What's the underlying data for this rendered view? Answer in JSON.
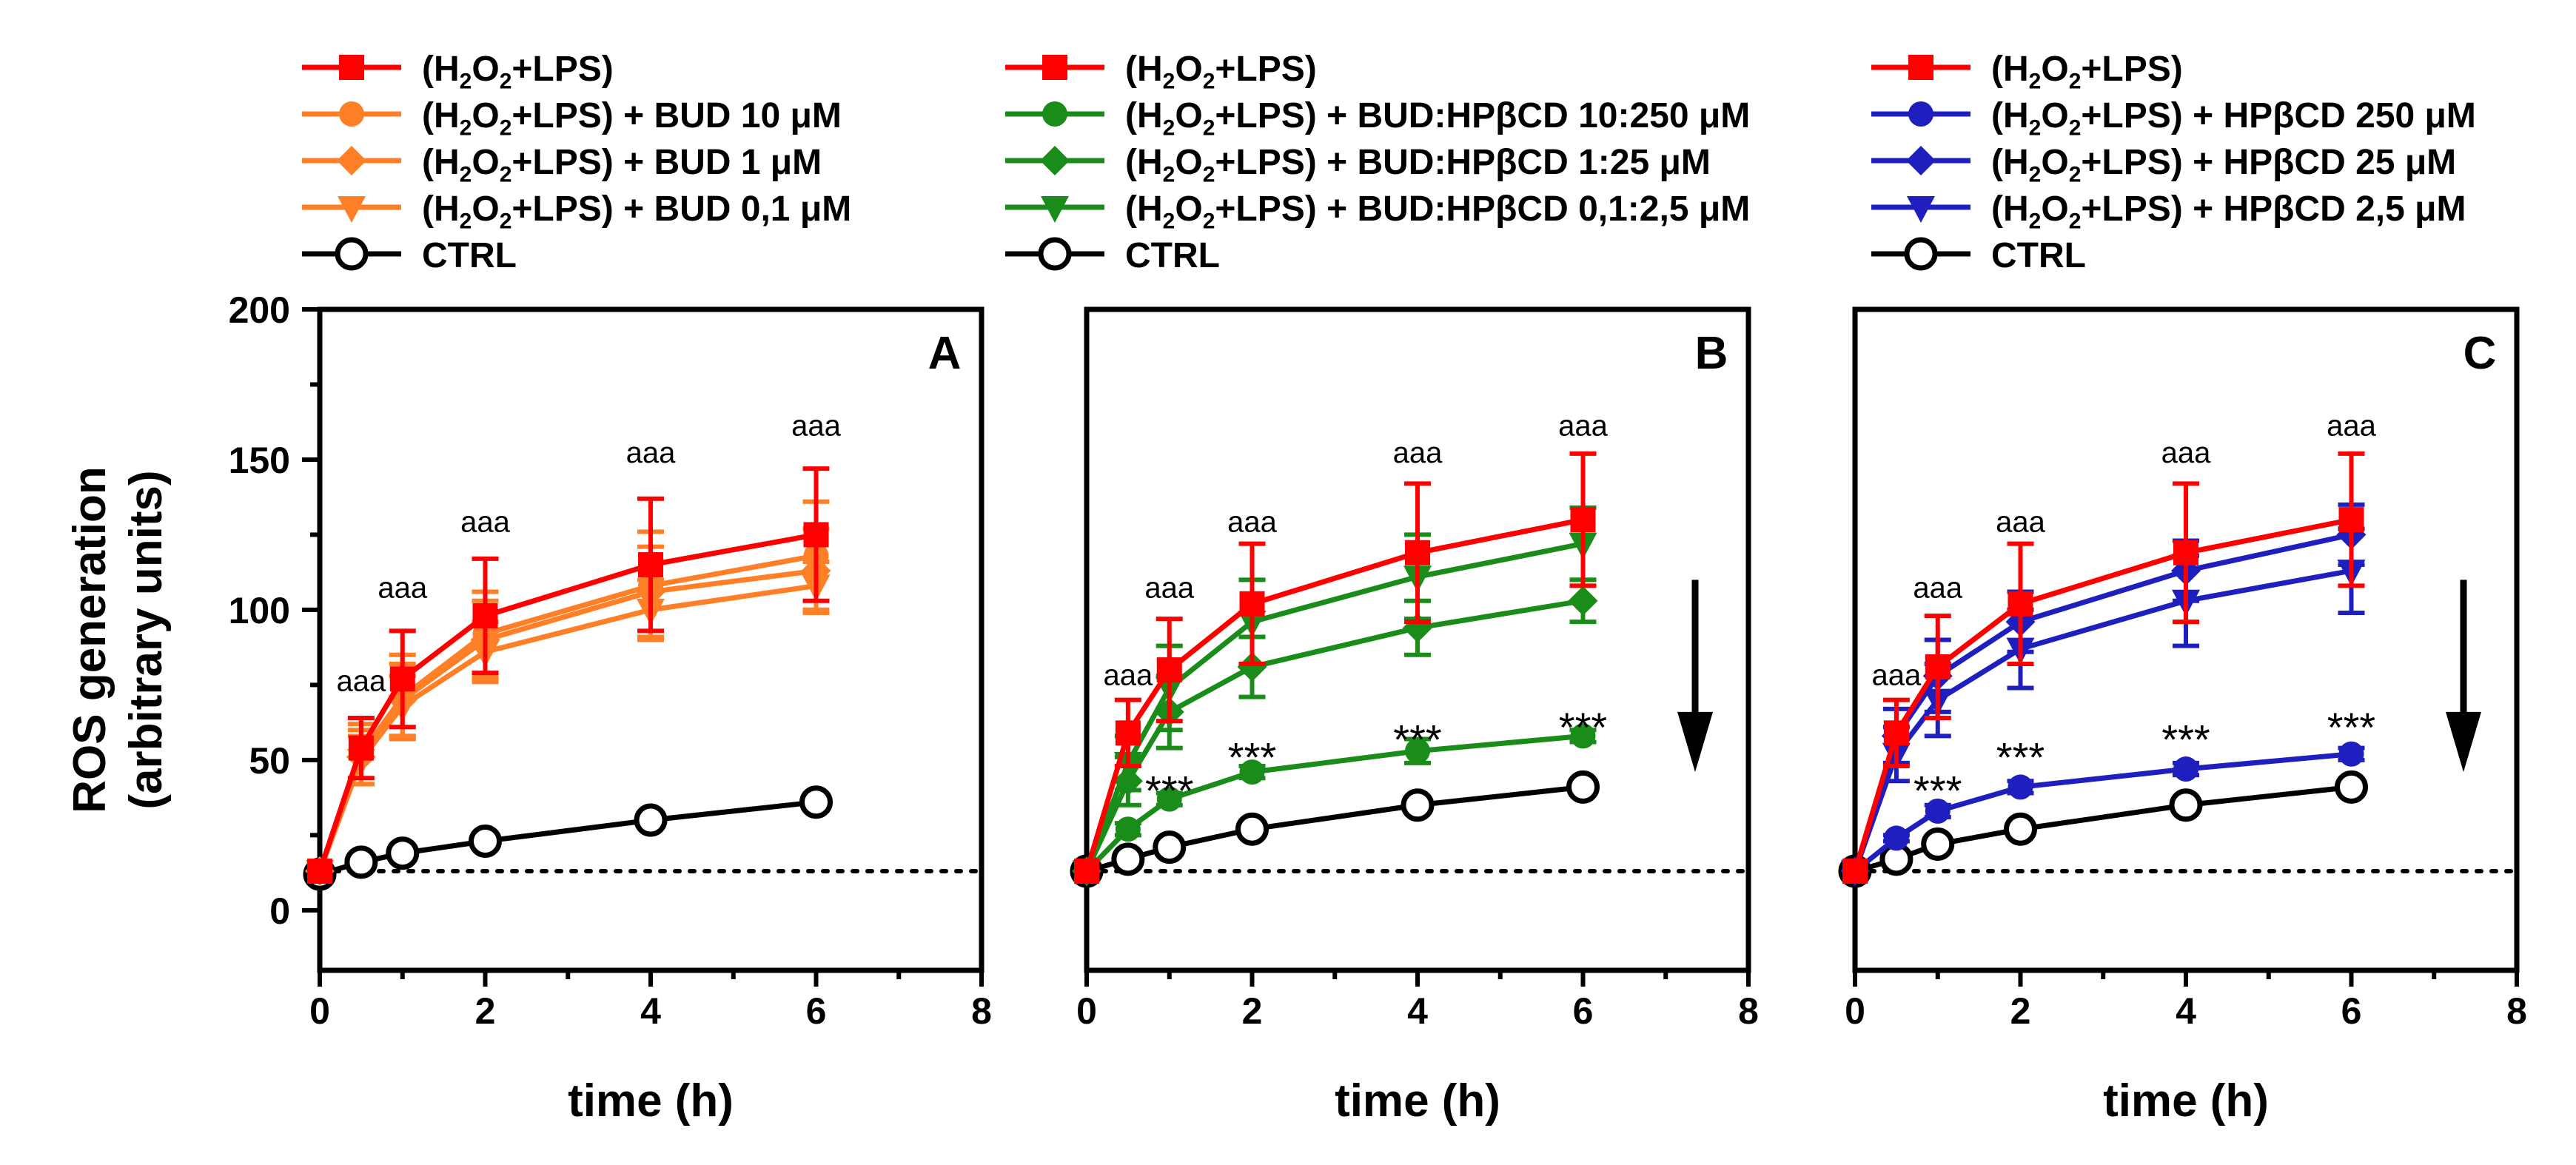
{
  "chart_data": [
    {
      "panel_label": "A",
      "type": "line",
      "xlabel": "time (h)",
      "ylabel": "ROS generation\n(arbitrary units)",
      "xlim": [
        0,
        8
      ],
      "ylim": [
        -20,
        200
      ],
      "x_ticks": [
        "0",
        "2",
        "4",
        "6",
        "8"
      ],
      "y_ticks": [
        "0",
        "50",
        "100",
        "150",
        "200"
      ],
      "baseline_dotted": 13,
      "x": [
        0,
        0.5,
        1,
        2,
        4,
        6
      ],
      "series": [
        {
          "name": "(H₂O₂+LPS)",
          "color": "#ff0000",
          "marker": "square",
          "values": [
            13,
            54,
            77,
            98,
            115,
            125
          ],
          "err": [
            0,
            10,
            16,
            19,
            22,
            22
          ]
        },
        {
          "name": "(H₂O₂+LPS) + BUD 10 μM",
          "color": "#ff7f27",
          "marker": "circle",
          "values": [
            13,
            52,
            71,
            92,
            108,
            118
          ],
          "err": [
            0,
            10,
            14,
            14,
            18,
            18
          ]
        },
        {
          "name": "(H₂O₂+LPS) + BUD 1 μM",
          "color": "#ff7f27",
          "marker": "diamond",
          "values": [
            13,
            51,
            70,
            90,
            106,
            113
          ],
          "err": [
            0,
            9,
            12,
            13,
            15,
            14
          ]
        },
        {
          "name": "(H₂O₂+LPS) + BUD 0,1 μM",
          "color": "#ff7f27",
          "marker": "triangle-down",
          "values": [
            13,
            50,
            68,
            86,
            100,
            108
          ],
          "err": [
            0,
            8,
            10,
            10,
            10,
            8
          ]
        },
        {
          "name": "CTRL",
          "color": "#000000",
          "marker": "open-circle",
          "values": [
            12,
            16,
            19,
            23,
            30,
            36
          ],
          "err": [
            0,
            0,
            0,
            0,
            0,
            0
          ]
        }
      ],
      "annotations": [
        {
          "text": "aaa",
          "x": 0.5,
          "y": 73
        },
        {
          "text": "aaa",
          "x": 1,
          "y": 104
        },
        {
          "text": "aaa",
          "x": 2,
          "y": 126
        },
        {
          "text": "aaa",
          "x": 4,
          "y": 149
        },
        {
          "text": "aaa",
          "x": 6,
          "y": 158
        }
      ]
    },
    {
      "panel_label": "B",
      "type": "line",
      "xlabel": "time (h)",
      "xlim": [
        0,
        8
      ],
      "ylim": [
        -20,
        200
      ],
      "x_ticks": [
        "0",
        "2",
        "4",
        "6",
        "8"
      ],
      "baseline_dotted": 13,
      "down_arrow": true,
      "x": [
        0,
        0.5,
        1,
        2,
        4,
        6
      ],
      "series": [
        {
          "name": "(H₂O₂+LPS)",
          "color": "#ff0000",
          "marker": "square",
          "values": [
            13,
            59,
            80,
            102,
            119,
            130
          ],
          "err": [
            0,
            11,
            17,
            20,
            23,
            22
          ]
        },
        {
          "name": "(H₂O₂+LPS) + BUD:HPβCD 10:250 μM",
          "color": "#1a8c1a",
          "marker": "circle",
          "values": [
            13,
            27,
            37,
            46,
            53,
            58
          ],
          "err": [
            0,
            2,
            2,
            2,
            4,
            2
          ]
        },
        {
          "name": "(H₂O₂+LPS) + BUD:HPβCD 1:25 μM",
          "color": "#1a8c1a",
          "marker": "diamond",
          "values": [
            13,
            43,
            66,
            81,
            94,
            103
          ],
          "err": [
            0,
            8,
            12,
            10,
            9,
            7
          ]
        },
        {
          "name": "(H₂O₂+LPS) + BUD:HPβCD 0,1:2,5 μM",
          "color": "#1a8c1a",
          "marker": "triangle-down",
          "values": [
            13,
            49,
            74,
            96,
            111,
            122
          ],
          "err": [
            0,
            9,
            14,
            14,
            14,
            12
          ]
        },
        {
          "name": "CTRL",
          "color": "#000000",
          "marker": "open-circle",
          "values": [
            13,
            17,
            21,
            27,
            35,
            41
          ],
          "err": [
            0,
            0,
            0,
            0,
            0,
            0
          ]
        }
      ],
      "annotations": [
        {
          "text": "aaa",
          "x": 0.5,
          "y": 75
        },
        {
          "text": "aaa",
          "x": 1,
          "y": 104
        },
        {
          "text": "aaa",
          "x": 2,
          "y": 126
        },
        {
          "text": "aaa",
          "x": 4,
          "y": 149
        },
        {
          "text": "aaa",
          "x": 6,
          "y": 158
        },
        {
          "text": "***",
          "x": 1,
          "y": 41
        },
        {
          "text": "***",
          "x": 2,
          "y": 52
        },
        {
          "text": "***",
          "x": 4,
          "y": 58
        },
        {
          "text": "***",
          "x": 6,
          "y": 62
        }
      ]
    },
    {
      "panel_label": "C",
      "type": "line",
      "xlabel": "time (h)",
      "xlim": [
        0,
        8
      ],
      "ylim": [
        -20,
        200
      ],
      "x_ticks": [
        "0",
        "2",
        "4",
        "6",
        "8"
      ],
      "baseline_dotted": 13,
      "down_arrow": true,
      "x": [
        0,
        0.5,
        1,
        2,
        4,
        6
      ],
      "series": [
        {
          "name": "(H₂O₂+LPS)",
          "color": "#ff0000",
          "marker": "square",
          "values": [
            13,
            59,
            81,
            102,
            119,
            130
          ],
          "err": [
            0,
            11,
            17,
            20,
            23,
            22
          ]
        },
        {
          "name": "(H₂O₂+LPS) + HPβCD 250 μM",
          "color": "#1f1fbf",
          "marker": "circle",
          "values": [
            13,
            24,
            33,
            41,
            47,
            52
          ],
          "err": [
            0,
            1,
            2,
            2,
            2,
            2
          ]
        },
        {
          "name": "(H₂O₂+LPS) + HPβCD 25 μM",
          "color": "#1f1fbf",
          "marker": "diamond",
          "values": [
            13,
            58,
            78,
            96,
            113,
            125
          ],
          "err": [
            0,
            9,
            12,
            10,
            10,
            10
          ]
        },
        {
          "name": "(H₂O₂+LPS) + HPβCD 2,5 μM",
          "color": "#1f1fbf",
          "marker": "triangle-down",
          "values": [
            13,
            52,
            70,
            87,
            103,
            113
          ],
          "err": [
            0,
            9,
            12,
            13,
            15,
            14
          ]
        },
        {
          "name": "CTRL",
          "color": "#000000",
          "marker": "open-circle",
          "values": [
            13,
            17,
            22,
            27,
            35,
            41
          ],
          "err": [
            0,
            0,
            0,
            0,
            0,
            0
          ]
        }
      ],
      "annotations": [
        {
          "text": "aaa",
          "x": 0.5,
          "y": 75
        },
        {
          "text": "aaa",
          "x": 1,
          "y": 104
        },
        {
          "text": "aaa",
          "x": 2,
          "y": 126
        },
        {
          "text": "aaa",
          "x": 4,
          "y": 149
        },
        {
          "text": "aaa",
          "x": 6,
          "y": 158
        },
        {
          "text": "***",
          "x": 1,
          "y": 41
        },
        {
          "text": "***",
          "x": 2,
          "y": 52
        },
        {
          "text": "***",
          "x": 4,
          "y": 58
        },
        {
          "text": "***",
          "x": 6,
          "y": 62
        }
      ]
    }
  ]
}
